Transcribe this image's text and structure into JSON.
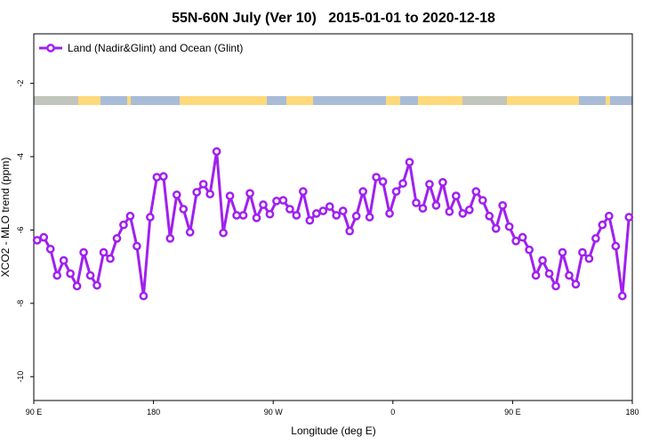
{
  "chart_data": {
    "type": "line",
    "title": "55N-60N July (Ver 10)   2015-01-01 to 2020-12-18",
    "xlabel": "Longitude (deg E)",
    "ylabel": "XCO2 - MLO trend (ppm)",
    "x": [
      92.5,
      97.5,
      102.5,
      107.5,
      112.5,
      117.5,
      122.5,
      127.5,
      132.5,
      137.5,
      142.5,
      147.5,
      152.5,
      157.5,
      162.5,
      167.5,
      172.5,
      177.5,
      182.5,
      187.5,
      192.5,
      197.5,
      202.5,
      207.5,
      212.5,
      217.5,
      222.5,
      227.5,
      232.5,
      237.5,
      242.5,
      247.5,
      252.5,
      257.5,
      262.5,
      267.5,
      272.5,
      277.5,
      282.5,
      287.5,
      292.5,
      297.5,
      302.5,
      307.5,
      312.5,
      317.5,
      322.5,
      327.5,
      332.5,
      337.5,
      342.5,
      347.5,
      352.5,
      357.5,
      362.5,
      367.5,
      372.5,
      377.5,
      382.5,
      387.5,
      392.5,
      397.5,
      402.5,
      407.5,
      412.5,
      417.5,
      422.5,
      427.5,
      432.5,
      437.5,
      442.5,
      447.5,
      452.5,
      457.5,
      462.5,
      467.5,
      472.5,
      477.5,
      482.5,
      487.5,
      492.5,
      497.5,
      502.5,
      507.5,
      512.5,
      517.5,
      522.5,
      527.5,
      532.5,
      537.5
    ],
    "series": [
      {
        "name": "Land (Nadir&Glint) and Ocean (Glint)",
        "color": "#a020f0",
        "values": [
          -6.28,
          -6.2,
          -6.52,
          -7.24,
          -6.83,
          -7.19,
          -7.53,
          -6.61,
          -7.24,
          -7.51,
          -6.61,
          -6.78,
          -6.23,
          -5.86,
          -5.62,
          -6.44,
          -7.8,
          -5.65,
          -4.56,
          -4.54,
          -6.23,
          -5.04,
          -5.43,
          -6.06,
          -4.97,
          -4.75,
          -5.02,
          -3.86,
          -6.08,
          -5.07,
          -5.6,
          -5.6,
          -5.0,
          -5.67,
          -5.31,
          -5.57,
          -5.21,
          -5.19,
          -5.43,
          -5.6,
          -4.95,
          -5.74,
          -5.55,
          -5.48,
          -5.36,
          -5.6,
          -5.48,
          -6.03,
          -5.62,
          -4.95,
          -5.65,
          -4.56,
          -4.68,
          -5.55,
          -4.95,
          -4.73,
          -4.15,
          -5.26,
          -5.41,
          -4.75,
          -5.33,
          -4.7,
          -5.5,
          -5.07,
          -5.55,
          -5.45,
          -4.95,
          -5.19,
          -5.62,
          -5.96,
          -5.33,
          -5.91,
          -6.3,
          -6.2,
          -6.54,
          -7.24,
          -6.83,
          -7.19,
          -7.53,
          -6.61,
          -7.24,
          -7.48,
          -6.61,
          -6.78,
          -6.23,
          -5.86,
          -5.62,
          -6.44,
          -7.8,
          -5.65
        ]
      }
    ],
    "xlim": [
      90,
      540
    ],
    "xticks": [
      {
        "value": 90,
        "label": "90 E"
      },
      {
        "value": 180,
        "label": "180"
      },
      {
        "value": 270,
        "label": "90 W"
      },
      {
        "value": 360,
        "label": "0"
      },
      {
        "value": 450,
        "label": "90 E"
      },
      {
        "value": 540,
        "label": "180"
      }
    ],
    "ylim": [
      -10.65,
      -0.65
    ],
    "yticks": [
      -2,
      -4,
      -6,
      -8,
      -10
    ],
    "legend": "topleft"
  }
}
